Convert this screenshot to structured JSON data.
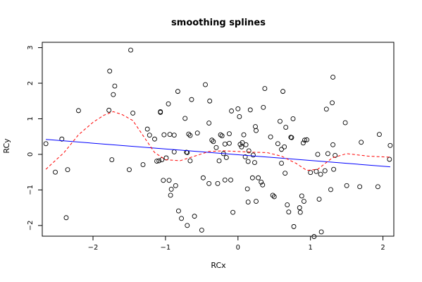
{
  "chart_data": {
    "type": "scatter",
    "title": "smoothing splines",
    "xlabel": "RCx",
    "ylabel": "RCy",
    "xlim": [
      -2.7,
      2.15
    ],
    "ylim": [
      -2.3,
      3.15
    ],
    "x_ticks": [
      -2,
      -1,
      0,
      1,
      2
    ],
    "x_tick_labels": [
      "−2",
      "−1",
      "0",
      "1",
      "2"
    ],
    "y_ticks": [
      -2,
      -1,
      0,
      1,
      2,
      3
    ],
    "y_tick_labels": [
      "−2",
      "−1",
      "0",
      "1",
      "2",
      "3"
    ],
    "grid": false,
    "legend": "none",
    "points": [
      [
        -2.65,
        0.3
      ],
      [
        -2.52,
        -0.5
      ],
      [
        -2.43,
        0.43
      ],
      [
        -2.37,
        -1.78
      ],
      [
        -2.35,
        -0.43
      ],
      [
        -2.2,
        1.23
      ],
      [
        -1.78,
        1.24
      ],
      [
        -1.77,
        2.34
      ],
      [
        -1.74,
        -0.15
      ],
      [
        -1.72,
        1.68
      ],
      [
        -1.7,
        1.92
      ],
      [
        -1.5,
        -0.43
      ],
      [
        -1.48,
        2.93
      ],
      [
        -1.45,
        1.16
      ],
      [
        -1.31,
        -0.29
      ],
      [
        -1.25,
        0.71
      ],
      [
        -1.22,
        0.54
      ],
      [
        -1.15,
        0.43
      ],
      [
        -1.12,
        -0.19
      ],
      [
        -1.09,
        -0.18
      ],
      [
        -1.07,
        1.18
      ],
      [
        -1.07,
        1.2
      ],
      [
        -1.05,
        -0.15
      ],
      [
        -1.03,
        -0.73
      ],
      [
        -1.02,
        0.55
      ],
      [
        -0.99,
        -0.1
      ],
      [
        -0.96,
        1.42
      ],
      [
        -0.95,
        -0.73
      ],
      [
        -0.94,
        0.56
      ],
      [
        -0.93,
        -1.15
      ],
      [
        -0.92,
        -0.98
      ],
      [
        -0.88,
        0.54
      ],
      [
        -0.88,
        0.07
      ],
      [
        -0.86,
        -0.88
      ],
      [
        -0.83,
        1.77
      ],
      [
        -0.82,
        -1.59
      ],
      [
        -0.78,
        -1.8
      ],
      [
        -0.73,
        1.01
      ],
      [
        -0.71,
        0.06
      ],
      [
        -0.7,
        0.05
      ],
      [
        -0.7,
        -2.0
      ],
      [
        -0.68,
        0.57
      ],
      [
        -0.66,
        -0.18
      ],
      [
        -0.66,
        0.53
      ],
      [
        -0.64,
        1.54
      ],
      [
        -0.6,
        -1.74
      ],
      [
        -0.56,
        0.6
      ],
      [
        -0.5,
        -2.13
      ],
      [
        -0.48,
        -0.66
      ],
      [
        -0.45,
        1.96
      ],
      [
        -0.4,
        -0.82
      ],
      [
        -0.4,
        0.88
      ],
      [
        -0.39,
        1.5
      ],
      [
        -0.36,
        0.4
      ],
      [
        -0.34,
        0.36
      ],
      [
        -0.3,
        0.19
      ],
      [
        -0.28,
        -0.82
      ],
      [
        -0.26,
        -0.18
      ],
      [
        -0.24,
        0.55
      ],
      [
        -0.22,
        0.52
      ],
      [
        -0.2,
        0.02
      ],
      [
        -0.18,
        -0.72
      ],
      [
        -0.18,
        0.29
      ],
      [
        -0.16,
        -0.09
      ],
      [
        -0.12,
        0.58
      ],
      [
        -0.12,
        0.31
      ],
      [
        -0.1,
        -0.72
      ],
      [
        -0.09,
        1.22
      ],
      [
        -0.07,
        -1.63
      ],
      [
        0.0,
        1.28
      ],
      [
        0.02,
        1.06
      ],
      [
        0.03,
        0.28
      ],
      [
        0.05,
        0.21
      ],
      [
        0.06,
        0.33
      ],
      [
        0.08,
        0.55
      ],
      [
        0.1,
        -0.07
      ],
      [
        0.11,
        0.27
      ],
      [
        0.13,
        -0.97
      ],
      [
        0.14,
        -1.34
      ],
      [
        0.14,
        -0.2
      ],
      [
        0.15,
        0.1
      ],
      [
        0.17,
        1.25
      ],
      [
        0.2,
        -0.66
      ],
      [
        0.21,
        -0.02
      ],
      [
        0.23,
        -0.23
      ],
      [
        0.24,
        0.78
      ],
      [
        0.25,
        0.67
      ],
      [
        0.25,
        -1.32
      ],
      [
        0.28,
        -0.66
      ],
      [
        0.32,
        -0.78
      ],
      [
        0.34,
        -0.86
      ],
      [
        0.35,
        1.32
      ],
      [
        0.37,
        1.85
      ],
      [
        0.45,
        0.49
      ],
      [
        0.48,
        -1.15
      ],
      [
        0.5,
        -1.19
      ],
      [
        0.55,
        0.3
      ],
      [
        0.58,
        0.93
      ],
      [
        0.6,
        0.14
      ],
      [
        0.6,
        -0.25
      ],
      [
        0.62,
        1.77
      ],
      [
        0.64,
        0.21
      ],
      [
        0.65,
        -0.53
      ],
      [
        0.66,
        0.76
      ],
      [
        0.68,
        -1.42
      ],
      [
        0.7,
        -1.62
      ],
      [
        0.73,
        0.48
      ],
      [
        0.74,
        0.47
      ],
      [
        0.76,
        1.0
      ],
      [
        0.77,
        -2.03
      ],
      [
        0.85,
        -1.5
      ],
      [
        0.86,
        -1.63
      ],
      [
        0.88,
        -1.17
      ],
      [
        0.9,
        0.32
      ],
      [
        0.91,
        -1.32
      ],
      [
        0.92,
        0.4
      ],
      [
        0.95,
        0.41
      ],
      [
        1.0,
        -0.51
      ],
      [
        1.05,
        -2.31
      ],
      [
        1.08,
        -0.48
      ],
      [
        1.1,
        0.0
      ],
      [
        1.12,
        -1.26
      ],
      [
        1.14,
        -0.56
      ],
      [
        1.15,
        -2.18
      ],
      [
        1.2,
        -0.46
      ],
      [
        1.22,
        1.27
      ],
      [
        1.24,
        0.02
      ],
      [
        1.28,
        -0.99
      ],
      [
        1.3,
        1.45
      ],
      [
        1.31,
        2.17
      ],
      [
        1.31,
        0.27
      ],
      [
        1.32,
        -0.42
      ],
      [
        1.34,
        -0.03
      ],
      [
        1.48,
        0.89
      ],
      [
        1.5,
        -0.88
      ],
      [
        1.68,
        -0.91
      ],
      [
        1.7,
        0.34
      ],
      [
        1.93,
        -0.91
      ],
      [
        1.95,
        0.56
      ],
      [
        2.09,
        -0.14
      ],
      [
        2.1,
        0.25
      ]
    ],
    "series": [
      {
        "kind": "linear-fit",
        "color": "#0000ff",
        "style": "solid",
        "x": [
          -2.65,
          2.1
        ],
        "y": [
          0.42,
          -0.35
        ]
      },
      {
        "kind": "smoothing-spline",
        "color": "#ff0000",
        "style": "dashed",
        "x": [
          -2.65,
          -2.4,
          -2.2,
          -2.0,
          -1.85,
          -1.72,
          -1.6,
          -1.45,
          -1.3,
          -1.15,
          -1.0,
          -0.8,
          -0.6,
          -0.4,
          -0.2,
          0.0,
          0.2,
          0.4,
          0.6,
          0.8,
          0.95,
          1.1,
          1.3,
          1.5,
          1.8,
          2.1
        ],
        "y": [
          -0.42,
          0.05,
          0.55,
          0.9,
          1.1,
          1.2,
          1.12,
          0.95,
          0.5,
          0.05,
          -0.15,
          -0.18,
          -0.05,
          0.08,
          0.1,
          0.08,
          0.06,
          0.05,
          -0.05,
          -0.25,
          -0.45,
          -0.42,
          -0.1,
          0.02,
          -0.05,
          -0.08
        ]
      }
    ]
  }
}
